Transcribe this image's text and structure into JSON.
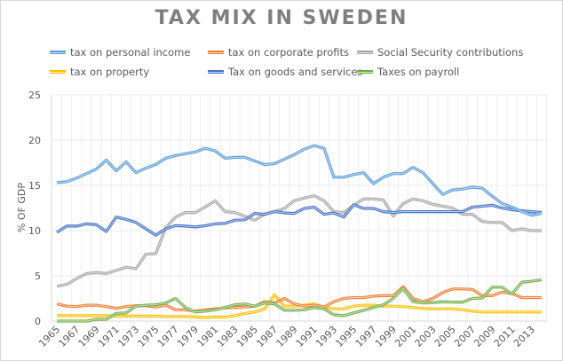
{
  "chart_data": {
    "type": "line",
    "title": "TAX MIX IN SWEDEN",
    "xlabel": "",
    "ylabel": "% OF GDP",
    "ylim": [
      0,
      25
    ],
    "yticks": [
      0,
      5,
      10,
      15,
      20,
      25
    ],
    "grid": true,
    "legend_position": "top",
    "x": [
      1965,
      1966,
      1967,
      1968,
      1969,
      1970,
      1971,
      1972,
      1973,
      1974,
      1975,
      1976,
      1977,
      1978,
      1979,
      1980,
      1981,
      1982,
      1983,
      1984,
      1985,
      1986,
      1987,
      1988,
      1989,
      1990,
      1991,
      1992,
      1993,
      1994,
      1995,
      1996,
      1997,
      1998,
      1999,
      2000,
      2001,
      2002,
      2003,
      2004,
      2005,
      2006,
      2007,
      2008,
      2009,
      2010,
      2011,
      2012,
      2013,
      2014
    ],
    "xtick_labels": [
      "1965",
      "1967",
      "1969",
      "1971",
      "1973",
      "1975",
      "1977",
      "1979",
      "1981",
      "1983",
      "1985",
      "1987",
      "1989",
      "1991",
      "1993",
      "1995",
      "1997",
      "1999",
      "2001",
      "2003",
      "2005",
      "2007",
      "2009",
      "2011",
      "2013"
    ],
    "series": [
      {
        "name": "tax on personal income",
        "color": "#5b9bd5",
        "values": [
          15.3,
          15.4,
          15.8,
          16.3,
          16.8,
          17.8,
          16.6,
          17.6,
          16.4,
          16.9,
          17.3,
          18.0,
          18.3,
          18.5,
          18.7,
          19.1,
          18.8,
          18.0,
          18.1,
          18.1,
          17.7,
          17.3,
          17.4,
          17.9,
          18.4,
          19.0,
          19.4,
          19.1,
          15.9,
          15.9,
          16.2,
          16.4,
          15.2,
          15.9,
          16.3,
          16.3,
          17.0,
          16.4,
          15.2,
          14.0,
          14.5,
          14.6,
          14.8,
          14.7,
          13.8,
          13.0,
          12.6,
          12.1,
          11.7,
          11.9
        ]
      },
      {
        "name": "tax on corporate profits",
        "color": "#ed7d31",
        "values": [
          1.9,
          1.65,
          1.6,
          1.75,
          1.75,
          1.6,
          1.4,
          1.6,
          1.7,
          1.7,
          1.55,
          1.75,
          1.25,
          1.25,
          1.1,
          1.25,
          1.35,
          1.45,
          1.5,
          1.55,
          1.65,
          2.15,
          2.0,
          2.5,
          1.9,
          1.65,
          1.75,
          1.55,
          2.15,
          2.5,
          2.6,
          2.6,
          2.75,
          2.8,
          2.8,
          3.8,
          2.5,
          2.15,
          2.5,
          3.15,
          3.55,
          3.55,
          3.5,
          2.8,
          2.8,
          3.2,
          3.05,
          2.6,
          2.6,
          2.6
        ]
      },
      {
        "name": "Social Security contributions",
        "color": "#a5a5a5",
        "values": [
          3.85,
          4.05,
          4.7,
          5.25,
          5.35,
          5.25,
          5.6,
          5.95,
          5.8,
          7.4,
          7.45,
          10.3,
          11.5,
          12.0,
          12.0,
          12.6,
          13.3,
          12.1,
          12.0,
          11.6,
          11.15,
          11.8,
          12.1,
          12.45,
          13.3,
          13.6,
          13.85,
          13.3,
          12.1,
          12.0,
          12.8,
          13.5,
          13.5,
          13.4,
          11.6,
          13.0,
          13.5,
          13.3,
          12.9,
          12.7,
          12.5,
          11.8,
          11.8,
          11.0,
          10.9,
          10.9,
          10.0,
          10.2,
          10.0,
          10.0
        ]
      },
      {
        "name": "tax on property",
        "color": "#ffc000",
        "values": [
          0.6,
          0.6,
          0.6,
          0.6,
          0.6,
          0.6,
          0.55,
          0.55,
          0.55,
          0.55,
          0.55,
          0.5,
          0.5,
          0.5,
          0.45,
          0.4,
          0.45,
          0.45,
          0.6,
          0.85,
          1.0,
          1.35,
          2.9,
          1.65,
          1.65,
          1.75,
          1.9,
          1.55,
          1.35,
          1.35,
          1.65,
          1.75,
          1.75,
          1.65,
          1.65,
          1.6,
          1.5,
          1.4,
          1.35,
          1.35,
          1.35,
          1.25,
          1.1,
          1.0,
          1.0,
          1.0,
          1.0,
          1.0,
          1.0,
          1.0
        ]
      },
      {
        "name": "Tax on goods and services",
        "color": "#4472c4",
        "values": [
          9.8,
          10.5,
          10.5,
          10.75,
          10.65,
          9.9,
          11.5,
          11.25,
          10.9,
          10.2,
          9.5,
          10.2,
          10.55,
          10.5,
          10.4,
          10.55,
          10.75,
          10.8,
          11.15,
          11.2,
          11.9,
          11.8,
          12.1,
          11.95,
          11.9,
          12.45,
          12.6,
          11.8,
          11.95,
          11.5,
          12.85,
          12.45,
          12.45,
          12.1,
          12.0,
          12.1,
          12.1,
          12.1,
          12.1,
          12.1,
          12.1,
          12.1,
          12.6,
          12.7,
          12.8,
          12.5,
          12.3,
          12.2,
          12.1,
          12.0
        ]
      },
      {
        "name": "Taxes on payroll",
        "color": "#70ad47",
        "values": [
          0.0,
          0.0,
          0.0,
          0.0,
          0.2,
          0.2,
          0.85,
          0.9,
          1.65,
          1.75,
          1.8,
          2.0,
          2.5,
          1.5,
          1.0,
          1.1,
          1.25,
          1.5,
          1.8,
          1.9,
          1.65,
          2.0,
          1.9,
          1.2,
          1.2,
          1.25,
          1.5,
          1.35,
          0.7,
          0.6,
          0.9,
          1.2,
          1.5,
          1.8,
          2.5,
          3.6,
          2.15,
          2.0,
          2.05,
          2.15,
          2.1,
          2.1,
          2.5,
          2.55,
          3.75,
          3.75,
          3.0,
          4.3,
          4.4,
          4.55
        ]
      }
    ]
  }
}
